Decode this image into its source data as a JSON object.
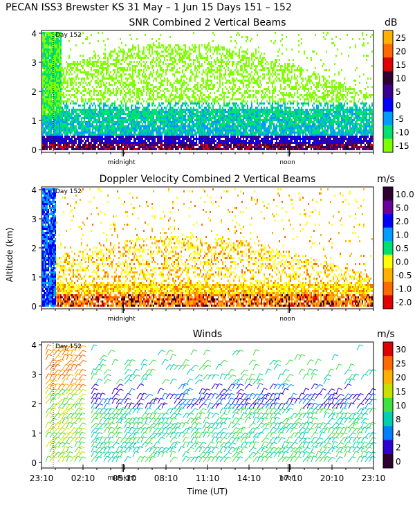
{
  "page_title": "PECAN ISS3 Brewster KS  31 May –  1 Jun 15 Days 151 – 152",
  "chart_data": [
    {
      "type": "heatmap",
      "title": "SNR Combined 2 Vertical Beams",
      "ylabel": "",
      "ylim": [
        0,
        4
      ],
      "yticks": [
        "0",
        "1",
        "2",
        "3",
        "4"
      ],
      "markers": [
        "midnight",
        "noon"
      ],
      "day_marker": "Day 152",
      "colorbar": {
        "unit": "dB",
        "labels": [
          "25",
          "20",
          "15",
          "10",
          "5",
          "0",
          "-5",
          "-10",
          "-15"
        ],
        "colors": [
          "#ffb000",
          "#ff6a00",
          "#e00000",
          "#300030",
          "#3a0090",
          "#0000ff",
          "#009cff",
          "#00e070",
          "#80ff00"
        ]
      }
    },
    {
      "type": "heatmap",
      "title": "Doppler Velocity Combined 2 Vertical Beams",
      "ylabel": "Altitude (km)",
      "ylim": [
        0,
        4
      ],
      "yticks": [
        "0",
        "1",
        "2",
        "3",
        "4"
      ],
      "markers": [
        "midnight",
        "noon"
      ],
      "day_marker": "Day 152",
      "colorbar": {
        "unit": "m/s",
        "labels": [
          "10.0",
          "5.0",
          "2.0",
          "1.0",
          "0.5",
          "0.0",
          "-0.5",
          "-1.0",
          "-2.0"
        ],
        "colors": [
          "#300030",
          "#6a00a0",
          "#0000ff",
          "#009cff",
          "#00e070",
          "#ffff00",
          "#ffb000",
          "#ff6a00",
          "#e00000"
        ]
      }
    },
    {
      "type": "scatter",
      "title": "Winds",
      "xlabel": "Time (UT)",
      "ylim": [
        0,
        4
      ],
      "yticks": [
        "0",
        "1",
        "2",
        "3",
        "4"
      ],
      "xticks": [
        "23:10",
        "02:10",
        "05:10",
        "08:10",
        "11:10",
        "14:10",
        "17:10",
        "20:10",
        "23:10"
      ],
      "markers": [
        "midnight",
        "noon"
      ],
      "day_marker": "Day 152",
      "colorbar": {
        "unit": "m/s",
        "labels": [
          "30",
          "25",
          "20",
          "15",
          "10",
          "8",
          "4",
          "2",
          "0"
        ],
        "colors": [
          "#e00000",
          "#ff6a00",
          "#ffb000",
          "#c8e000",
          "#40e040",
          "#00d0b0",
          "#0080ff",
          "#3000d0",
          "#300030"
        ]
      }
    }
  ]
}
